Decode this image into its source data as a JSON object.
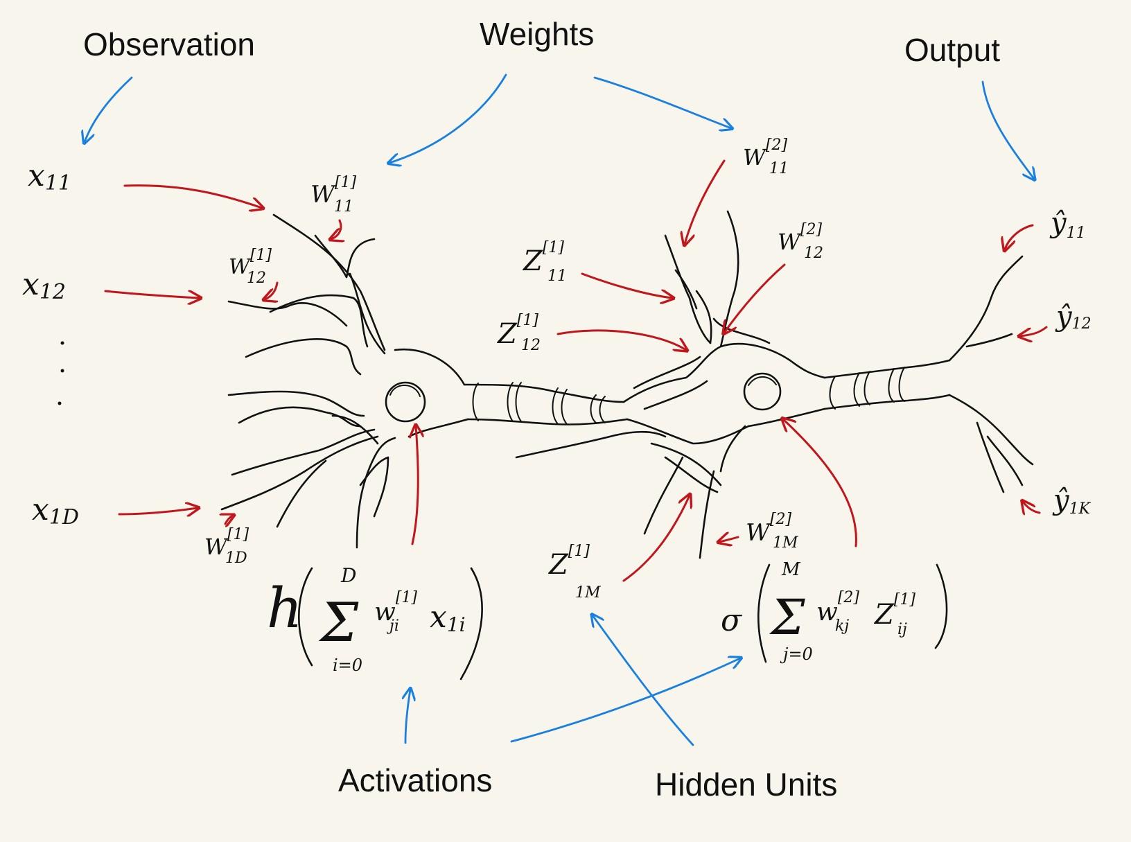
{
  "labels": {
    "observation": "Observation",
    "weights": "Weights",
    "output": "Output",
    "activations": "Activations",
    "hidden_units": "Hidden Units"
  },
  "inputs": {
    "x11": {
      "base": "x",
      "sub": "11"
    },
    "x12": {
      "base": "x",
      "sub": "12"
    },
    "x1d": {
      "base": "x",
      "sub": "1D"
    }
  },
  "weights_l1": {
    "w11": {
      "base": "W",
      "sup": "[1]",
      "sub": "11"
    },
    "w12": {
      "base": "W",
      "sup": "[1]",
      "sub": "12"
    },
    "w1d": {
      "base": "W",
      "sup": "[1]",
      "sub": "1D"
    }
  },
  "weights_l2": {
    "w11": {
      "base": "W",
      "sup": "[2]",
      "sub": "11"
    },
    "w12": {
      "base": "W",
      "sup": "[2]",
      "sub": "12"
    },
    "w1m": {
      "base": "W",
      "sup": "[2]",
      "sub": "1M"
    }
  },
  "hidden": {
    "z11": {
      "base": "Z",
      "sup": "[1]",
      "sub": "11"
    },
    "z12": {
      "base": "Z",
      "sup": "[1]",
      "sub": "12"
    },
    "z1m": {
      "base": "Z",
      "sup": "[1]",
      "sub": "1M"
    }
  },
  "outputs": {
    "y11": {
      "base": "ŷ",
      "sub": "11"
    },
    "y12": {
      "base": "ŷ",
      "sub": "12"
    },
    "y1k": {
      "base": "ŷ",
      "sub": "1K"
    }
  },
  "formula1": {
    "fn": "h",
    "sum": "Σ",
    "upper": "D",
    "lower": "i=0",
    "w": "w",
    "w_sup": "[1]",
    "w_sub": "ji",
    "x": "x",
    "x_sub": "1i"
  },
  "formula2": {
    "fn": "σ",
    "sum": "Σ",
    "upper": "M",
    "lower": "j=0",
    "w": "w",
    "w_sup": "[2]",
    "w_sub": "kj",
    "z": "Z",
    "z_sup": "[1]",
    "z_sub": "ij"
  },
  "colors": {
    "background": "#f7f5ec",
    "ink": "#111111",
    "red_arrow": "#c0161c",
    "blue_arrow": "#1a80e0"
  }
}
